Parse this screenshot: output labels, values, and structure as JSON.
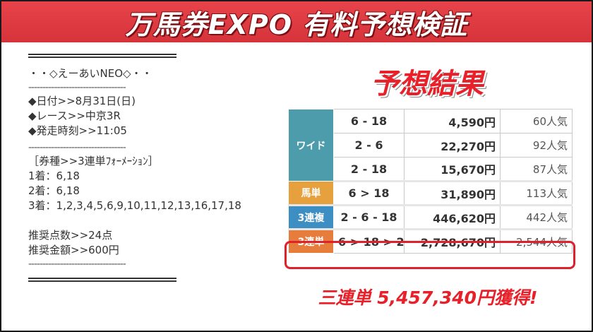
{
  "banner": {
    "title": "万馬券EXPO 有料予想検証"
  },
  "info": {
    "header": "・・◇えーあいNEO◇・・",
    "dashes": "----------------------------------",
    "date": "◆日付>>8月31日(日)",
    "race": "◆レース>>中京3R",
    "start_time": "◆発走時刻>>11:05",
    "bet_type": "［券種>>3連単ﾌｫｰﾒｰｼｮﾝ］",
    "first": "1着：6,18",
    "second": "2着：6,18",
    "third": "3着：1,2,3,4,5,6,9,10,11,12,13,16,17,18",
    "points": "推奨点数>>24点",
    "amount": "推奨金額>>600円"
  },
  "result": {
    "heading": "予想結果",
    "rows": [
      {
        "type": "ワイド",
        "combo": "6 - 18",
        "payout": "4,590円",
        "pop": "60人気"
      },
      {
        "type": "",
        "combo": "2 - 6",
        "payout": "22,270円",
        "pop": "92人気"
      },
      {
        "type": "",
        "combo": "2 - 18",
        "payout": "15,670円",
        "pop": "87人気"
      },
      {
        "type": "馬単",
        "combo": "6 > 18",
        "payout": "31,890円",
        "pop": "113人気"
      },
      {
        "type": "3連複",
        "combo": "2 - 6 - 18",
        "payout": "446,620円",
        "pop": "442人気"
      },
      {
        "type": "3連単",
        "combo": "6 > 18 > 2",
        "payout": "2,728,670円",
        "pop": "2,544人気"
      }
    ],
    "total": "三連単 5,457,340円獲得!"
  },
  "colors": {
    "banner": "#e8434b",
    "wide": "#4c9cab",
    "umatan": "#e6a03e",
    "sanrenpuku": "#3d8fc3",
    "sanrentan": "#e77d3c",
    "accent_red": "#e8202a"
  }
}
